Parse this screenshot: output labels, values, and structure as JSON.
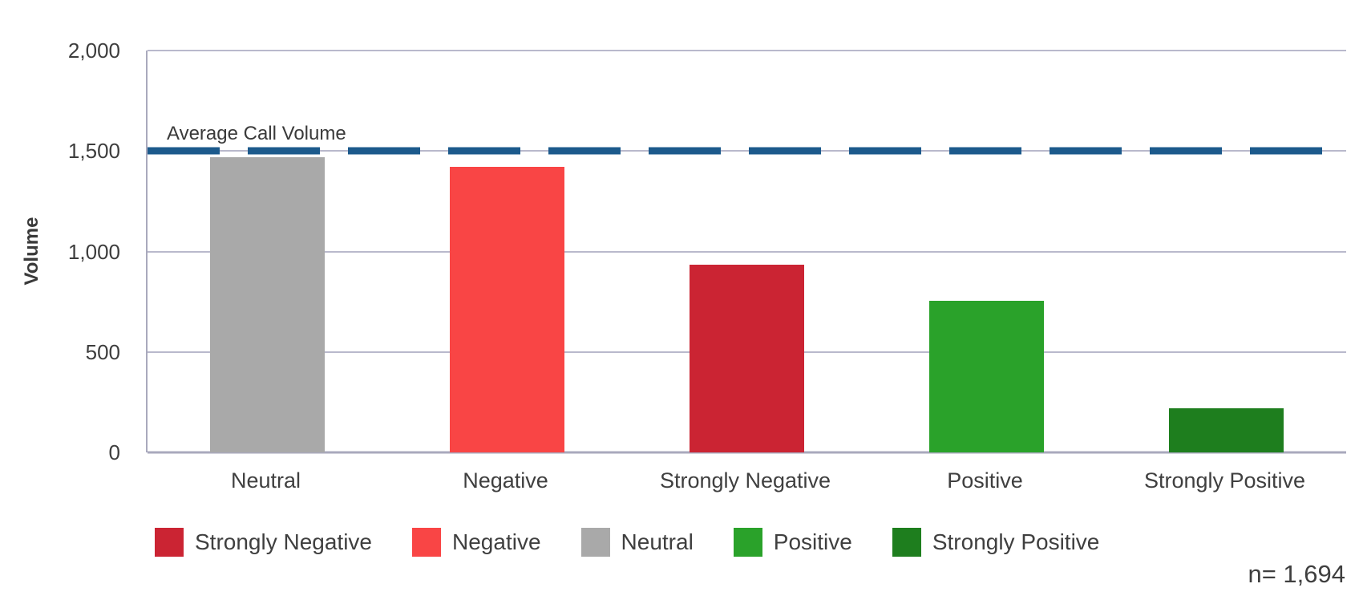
{
  "chart_data": {
    "type": "bar",
    "title": "",
    "categories": [
      "Neutral",
      "Negative",
      "Strongly Negative",
      "Positive",
      "Strongly Positive"
    ],
    "values": [
      1470,
      1420,
      935,
      755,
      220
    ],
    "bar_colors": [
      "#a9a9a9",
      "#f94545",
      "#cb2433",
      "#2aa22a",
      "#1e7e1e"
    ],
    "xlabel": "",
    "ylabel": "Volume",
    "ylim": [
      0,
      2000
    ],
    "y_ticks": [
      {
        "label": "2,000",
        "value": 2000
      },
      {
        "label": "1,500",
        "value": 1500
      },
      {
        "label": "1,000",
        "value": 1000
      },
      {
        "label": "500",
        "value": 500
      },
      {
        "label": "0",
        "value": 0
      }
    ],
    "grid": true,
    "reference_line": {
      "label": "Average Call Volume",
      "value": 1500,
      "color": "#1c5a8c",
      "style": "dashed"
    },
    "legend_position": "bottom",
    "legend": [
      {
        "label": "Strongly Negative",
        "color": "#cb2433"
      },
      {
        "label": "Negative",
        "color": "#f94545"
      },
      {
        "label": "Neutral",
        "color": "#a9a9a9"
      },
      {
        "label": "Positive",
        "color": "#2aa22a"
      },
      {
        "label": "Strongly Positive",
        "color": "#1e7e1e"
      }
    ],
    "annotation": "n= 1,694"
  },
  "colors": {
    "gridline": "#b9b9cc",
    "axis": "#a9a9bd",
    "text": "#3d3d3d"
  }
}
